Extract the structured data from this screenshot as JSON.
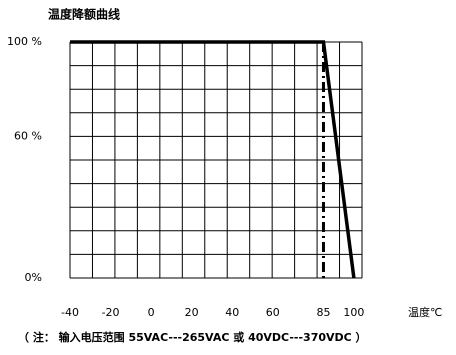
{
  "chart_data": {
    "type": "line",
    "title": "温度降额曲线",
    "x_label": "温度℃",
    "note": "（ 注：  输入电压范围 55VAC---265VAC 或 40VDC---370VDC ）",
    "x": [
      -40,
      85,
      100
    ],
    "series": [
      {
        "color": "#000000",
        "values": [
          100,
          100,
          0
        ]
      }
    ],
    "reference_x": 85,
    "xlim": [
      -40,
      104
    ],
    "xticks": [
      -40,
      -20,
      0,
      20,
      40,
      60,
      85,
      100
    ],
    "ylim": [
      0,
      100
    ],
    "yticks": [
      {
        "value": 100,
        "label": "100 %"
      },
      {
        "value": 60,
        "label": "60 %"
      },
      {
        "value": 0,
        "label": "0%"
      }
    ],
    "grid": true
  }
}
